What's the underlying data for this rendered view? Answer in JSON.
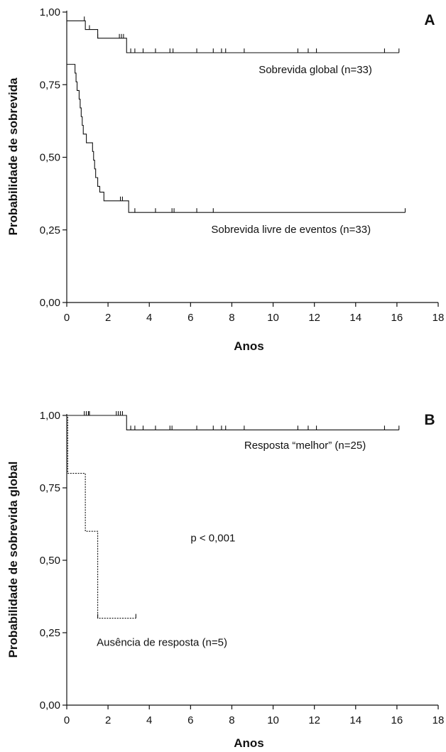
{
  "chart_data": [
    {
      "type": "line",
      "panel_label": "A",
      "xlabel": "Anos",
      "ylabel": "Probabilidade de sobrevida",
      "xlim": [
        0,
        18
      ],
      "ylim": [
        0,
        1
      ],
      "x_ticks": [
        0,
        2,
        4,
        6,
        8,
        10,
        12,
        14,
        16,
        18
      ],
      "y_ticks": [
        0,
        0.25,
        0.5,
        0.75,
        1
      ],
      "y_tick_labels": [
        "0,00",
        "0,25",
        "0,50",
        "0,75",
        "1,00"
      ],
      "grid": false,
      "legend": "none",
      "series": [
        {
          "name": "Sobrevida global (n=33)",
          "label_at": [
            9.3,
            0.79
          ],
          "line_style": "solid",
          "steps": [
            [
              0,
              0.97
            ],
            [
              0.9,
              0.94
            ],
            [
              1.5,
              0.91
            ],
            [
              2.9,
              0.86
            ],
            [
              16.1,
              0.86
            ]
          ],
          "censored": [
            0.85,
            1.1,
            1.5,
            2.55,
            2.65,
            2.75,
            3.1,
            3.3,
            3.7,
            4.3,
            5.0,
            5.15,
            6.3,
            7.1,
            7.5,
            7.7,
            8.6,
            11.2,
            11.7,
            12.1,
            15.4,
            16.1
          ]
        },
        {
          "name": "Sobrevida livre de eventos (n=33)",
          "label_at": [
            7.0,
            0.24
          ],
          "line_style": "solid",
          "steps": [
            [
              0,
              0.82
            ],
            [
              0.4,
              0.79
            ],
            [
              0.45,
              0.76
            ],
            [
              0.5,
              0.73
            ],
            [
              0.6,
              0.7
            ],
            [
              0.65,
              0.67
            ],
            [
              0.7,
              0.64
            ],
            [
              0.75,
              0.61
            ],
            [
              0.8,
              0.58
            ],
            [
              0.95,
              0.55
            ],
            [
              1.25,
              0.52
            ],
            [
              1.3,
              0.49
            ],
            [
              1.35,
              0.46
            ],
            [
              1.4,
              0.43
            ],
            [
              1.5,
              0.4
            ],
            [
              1.6,
              0.38
            ],
            [
              1.8,
              0.35
            ],
            [
              3.0,
              0.31
            ],
            [
              16.4,
              0.31
            ]
          ],
          "censored": [
            2.6,
            2.7,
            3.3,
            4.3,
            5.1,
            5.2,
            6.3,
            7.1,
            16.4
          ]
        }
      ]
    },
    {
      "type": "line",
      "panel_label": "B",
      "xlabel": "Anos",
      "ylabel": "Probabilidade de sobrevida global",
      "xlim": [
        0,
        18
      ],
      "ylim": [
        0,
        1
      ],
      "x_ticks": [
        0,
        2,
        4,
        6,
        8,
        10,
        12,
        14,
        16,
        18
      ],
      "y_ticks": [
        0,
        0.25,
        0.5,
        0.75,
        1
      ],
      "y_tick_labels": [
        "0,00",
        "0,25",
        "0,50",
        "0,75",
        "1,00"
      ],
      "grid": false,
      "legend": "none",
      "annotation": {
        "text": "p < 0,001",
        "at": [
          6.0,
          0.565
        ]
      },
      "series": [
        {
          "name": "Resposta “melhor” (n=25)",
          "label_at": [
            8.6,
            0.885
          ],
          "line_style": "solid",
          "steps": [
            [
              0,
              1.0
            ],
            [
              2.9,
              0.95
            ],
            [
              16.1,
              0.95
            ]
          ],
          "censored": [
            0.85,
            0.95,
            1.05,
            1.1,
            2.4,
            2.5,
            2.6,
            2.7,
            3.1,
            3.3,
            3.7,
            4.3,
            5.0,
            5.1,
            6.3,
            7.1,
            7.5,
            7.7,
            8.6,
            11.2,
            11.7,
            12.1,
            15.4,
            16.1
          ]
        },
        {
          "name": "Ausência de resposta (n=5)",
          "label_at": [
            1.45,
            0.205
          ],
          "line_style": "dotted",
          "steps": [
            [
              0,
              1.0
            ],
            [
              0.05,
              0.8
            ],
            [
              0.9,
              0.6
            ],
            [
              1.5,
              0.3
            ],
            [
              3.35,
              0.3
            ]
          ],
          "censored": [
            1.5,
            3.35
          ]
        }
      ]
    }
  ]
}
